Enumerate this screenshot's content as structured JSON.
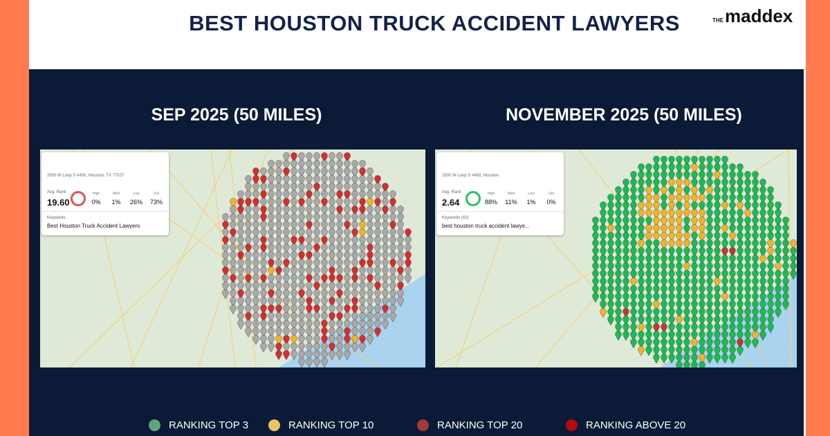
{
  "header": {
    "title": "BEST HOUSTON TRUCK ACCIDENT LAWYERS",
    "logo_prefix": "THE",
    "logo": "maddex"
  },
  "panels": [
    {
      "title": "SEP 2025 (50 MILES)",
      "card": {
        "address": "2500 W Loop S #450, Houston, TX 77027",
        "avg_label": "Avg. Rank",
        "avg": "19.60",
        "stats": [
          {
            "label": "High",
            "value": "0%"
          },
          {
            "label": "Med",
            "value": "1%"
          },
          {
            "label": "Low",
            "value": "26%"
          },
          {
            "label": "Out",
            "value": "73%"
          }
        ],
        "keywords_label": "Keywords",
        "keyword": "Best Houston Truck Accident Lawyers"
      }
    },
    {
      "title": "NOVEMBER 2025 (50 MILES)",
      "card": {
        "address": "2500 W Loop S #450, Houston",
        "avg_label": "Avg. Rank",
        "avg": "2.64",
        "stats": [
          {
            "label": "High",
            "value": "88%"
          },
          {
            "label": "Med",
            "value": "11%"
          },
          {
            "label": "Low",
            "value": "1%"
          },
          {
            "label": "Out",
            "value": "0%"
          }
        ],
        "keywords_label": "Keywords (63)",
        "keyword": "best houston truck accident lawye..."
      }
    }
  ],
  "legend": [
    {
      "label": "RANKING TOP 3",
      "color": "#5fa57a"
    },
    {
      "label": "RANKING TOP 10",
      "color": "#e9c46a"
    },
    {
      "label": "RANKING TOP 20",
      "color": "#a23b35"
    },
    {
      "label": "RANKING ABOVE 20",
      "color": "#b40d0d"
    }
  ]
}
